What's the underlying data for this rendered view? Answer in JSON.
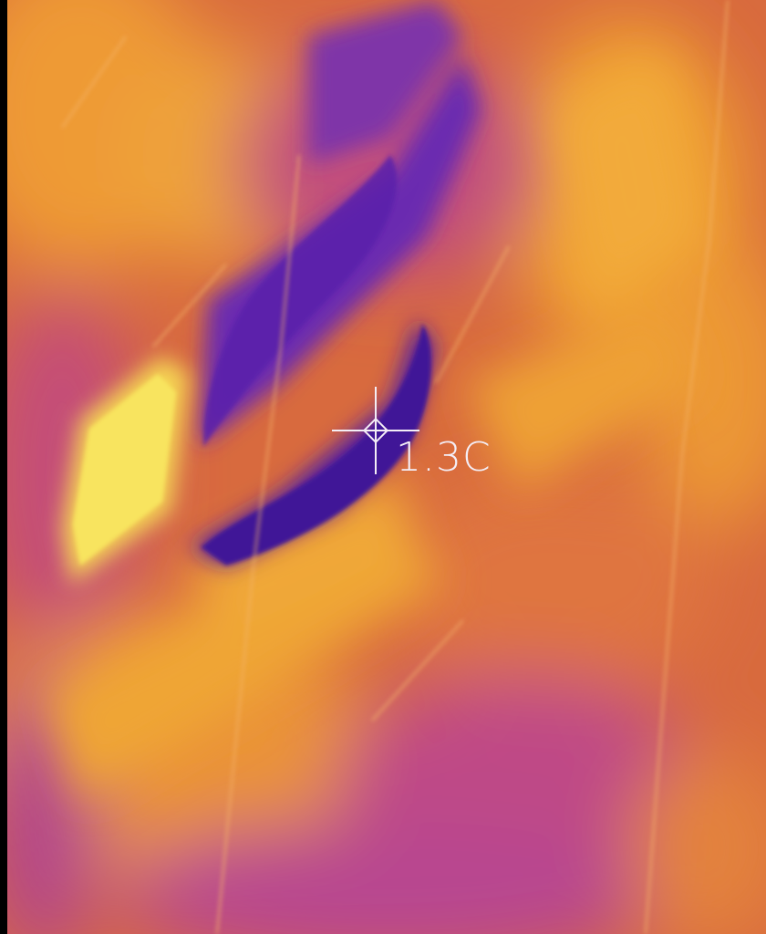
{
  "readout": {
    "temperature": "1.3C"
  },
  "palette": {
    "hot": "#f7e45a",
    "warm": "#f0a233",
    "mid": "#d4663f",
    "cool": "#b5488a",
    "cold": "#5b1fa6"
  },
  "icons": {
    "crosshair": "crosshair-icon"
  }
}
